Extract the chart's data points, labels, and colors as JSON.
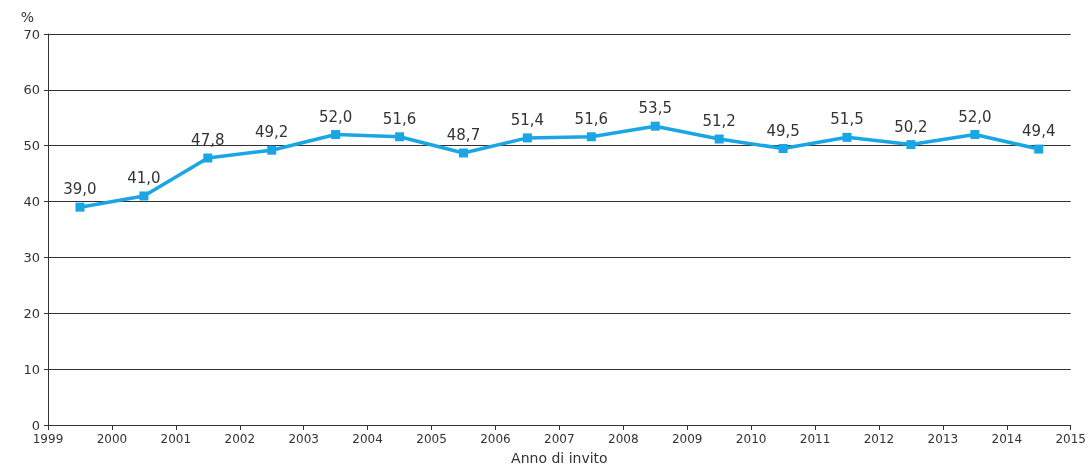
{
  "chart_data": {
    "type": "line",
    "xlabel": "Anno di invito",
    "ylabel": "%",
    "x": [
      1999.5,
      2000.5,
      2001.5,
      2002.5,
      2003.5,
      2004.5,
      2005.5,
      2006.5,
      2007.5,
      2008.5,
      2009.5,
      2010.5,
      2011.5,
      2012.5,
      2013.5,
      2014.5
    ],
    "series": [
      {
        "color": "#1aa6e4",
        "values": [
          39.0,
          41.0,
          47.8,
          49.2,
          52.0,
          51.6,
          48.7,
          51.4,
          51.6,
          53.5,
          51.2,
          49.5,
          51.5,
          50.2,
          52.0,
          49.4
        ],
        "value_labels": [
          "39,0",
          "41,0",
          "47,8",
          "49,2",
          "52,0",
          "51,6",
          "48,7",
          "51,4",
          "51,6",
          "53,5",
          "51,2",
          "49,5",
          "51,5",
          "50,2",
          "52,0",
          "49,4"
        ]
      }
    ],
    "xlim": [
      1999,
      2015
    ],
    "xticks": [
      1999,
      2000,
      2001,
      2002,
      2003,
      2004,
      2005,
      2006,
      2007,
      2008,
      2009,
      2010,
      2011,
      2012,
      2013,
      2014,
      2015
    ],
    "ylim": [
      0,
      70
    ],
    "yticks": [
      0,
      10,
      20,
      30,
      40,
      50,
      60,
      70
    ],
    "grid": "y",
    "marker": "square",
    "line_style": "solid"
  }
}
